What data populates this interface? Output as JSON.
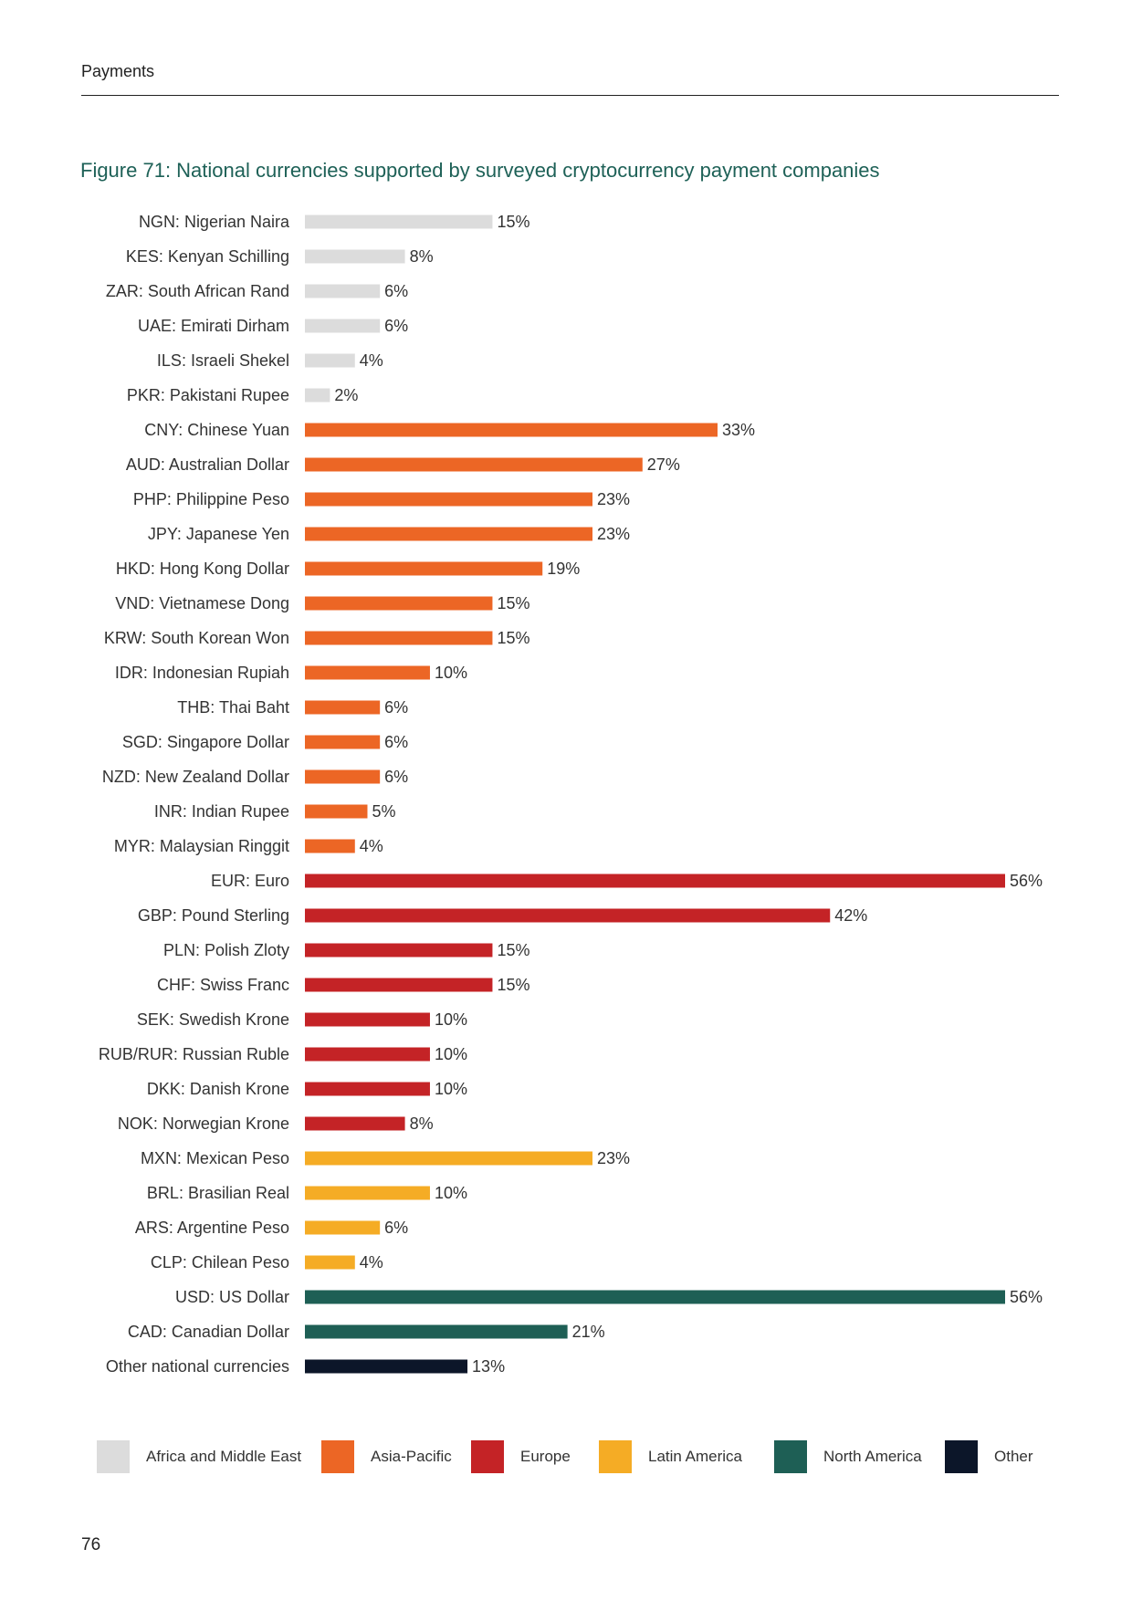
{
  "header": {
    "section": "Payments"
  },
  "page_number": "76",
  "chart_data": {
    "type": "bar",
    "orientation": "horizontal",
    "title": "Figure 71: National currencies supported by surveyed cryptocurrency payment companies",
    "xlabel": "",
    "ylabel": "",
    "xlim": [
      0,
      56
    ],
    "value_suffix": "%",
    "grid": false,
    "legend_position": "bottom",
    "colors": {
      "Africa and Middle East": "#dcdcdc",
      "Asia-Pacific": "#ec6625",
      "Europe": "#c42326",
      "Latin America": "#f5ac25",
      "North America": "#1e5f55",
      "Other": "#0c1629"
    },
    "legend": [
      "Africa and Middle East",
      "Asia-Pacific",
      "Europe",
      "Latin America",
      "North America",
      "Other"
    ],
    "categories": [
      "NGN: Nigerian Naira",
      "KES: Kenyan Schilling",
      "ZAR: South African Rand",
      "UAE: Emirati Dirham",
      "ILS: Israeli Shekel",
      "PKR: Pakistani Rupee",
      "CNY: Chinese Yuan",
      "AUD: Australian Dollar",
      "PHP: Philippine Peso",
      "JPY: Japanese Yen",
      "HKD: Hong Kong Dollar",
      "VND: Vietnamese Dong",
      "KRW: South Korean Won",
      "IDR: Indonesian Rupiah",
      "THB: Thai Baht",
      "SGD: Singapore Dollar",
      "NZD: New Zealand Dollar",
      "INR: Indian Rupee",
      "MYR: Malaysian Ringgit",
      "EUR: Euro",
      "GBP: Pound Sterling",
      "PLN: Polish Zloty",
      "CHF: Swiss Franc",
      "SEK: Swedish Krone",
      "RUB/RUR: Russian Ruble",
      "DKK: Danish Krone",
      "NOK: Norwegian Krone",
      "MXN: Mexican Peso",
      "BRL: Brasilian Real",
      "ARS: Argentine Peso",
      "CLP: Chilean Peso",
      "USD: US Dollar",
      "CAD: Canadian Dollar",
      "Other national currencies"
    ],
    "values": [
      15,
      8,
      6,
      6,
      4,
      2,
      33,
      27,
      23,
      23,
      19,
      15,
      15,
      10,
      6,
      6,
      6,
      5,
      4,
      56,
      42,
      15,
      15,
      10,
      10,
      10,
      8,
      23,
      10,
      6,
      4,
      56,
      21,
      13
    ],
    "regions": [
      "Africa and Middle East",
      "Africa and Middle East",
      "Africa and Middle East",
      "Africa and Middle East",
      "Africa and Middle East",
      "Africa and Middle East",
      "Asia-Pacific",
      "Asia-Pacific",
      "Asia-Pacific",
      "Asia-Pacific",
      "Asia-Pacific",
      "Asia-Pacific",
      "Asia-Pacific",
      "Asia-Pacific",
      "Asia-Pacific",
      "Asia-Pacific",
      "Asia-Pacific",
      "Asia-Pacific",
      "Asia-Pacific",
      "Europe",
      "Europe",
      "Europe",
      "Europe",
      "Europe",
      "Europe",
      "Europe",
      "Europe",
      "Latin America",
      "Latin America",
      "Latin America",
      "Latin America",
      "North America",
      "North America",
      "Other"
    ]
  }
}
